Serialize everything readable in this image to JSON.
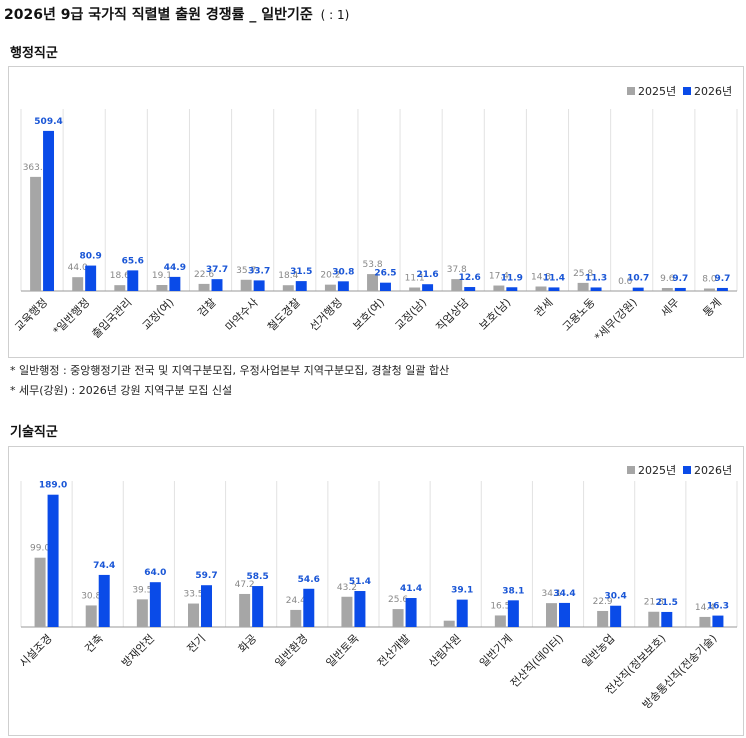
{
  "page": {
    "title": "2026년 9급 국가직 직렬별 출원 경쟁률 _ 일반기준",
    "unit": "( : 1)"
  },
  "colors": {
    "prev": "#a6a6a6",
    "curr": "#0a4be8",
    "grid": "#e2e2e2",
    "axis": "#999999"
  },
  "notes": [
    "* 일반행정 : 중앙행정기관 전국 및 지역구분모집, 우정사업본부 지역구분모집, 경찰청 일괄 합산",
    "* 세무(강원) : 2026년 강원 지역구분 모집 신설"
  ],
  "chart_data": [
    {
      "type": "bar",
      "title": "행정직군",
      "legend_position": "top-right",
      "grid": "vertical",
      "categories": [
        "교육행정",
        "*일반행정",
        "출입국관리",
        "교정(여)",
        "검찰",
        "마약수사",
        "철도경찰",
        "선거행정",
        "보호(여)",
        "교정(남)",
        "직업상담",
        "보호(남)",
        "관세",
        "고용노동",
        "*세무(강원)",
        "세무",
        "통계"
      ],
      "series": [
        {
          "name": "2025년",
          "values": [
            363.1,
            44.0,
            18.6,
            19.1,
            22.6,
            35.7,
            18.4,
            20.2,
            53.8,
            11.1,
            37.8,
            17.4,
            14.3,
            25.8,
            0.0,
            9.6,
            8.0
          ]
        },
        {
          "name": "2026년",
          "values": [
            509.4,
            80.9,
            65.6,
            44.9,
            37.7,
            33.7,
            31.5,
            30.8,
            26.5,
            21.6,
            12.6,
            11.9,
            11.4,
            11.3,
            10.7,
            9.7,
            9.7
          ]
        }
      ],
      "ylim": [
        0,
        560
      ]
    },
    {
      "type": "bar",
      "title": "기술직군",
      "legend_position": "top-right",
      "grid": "vertical",
      "categories": [
        "시설조경",
        "건축",
        "방재안전",
        "전기",
        "화공",
        "일반환경",
        "일반토목",
        "전산개발",
        "산림자원",
        "일반기계",
        "전산직(데이터)",
        "일반농업",
        "전산직(정보보호)",
        "방송통신직(전송기술)"
      ],
      "series": [
        {
          "name": "2025년",
          "values": [
            99.0,
            30.8,
            39.5,
            33.5,
            47.2,
            24.4,
            43.2,
            25.6,
            9.0,
            16.5,
            34.1,
            22.9,
            21.8,
            14.4
          ],
          "labels": [
            "99.0",
            "30.8",
            "39.5",
            "33.5",
            "47.2",
            "24.4",
            "43.2",
            "25.6",
            "",
            "16.5",
            "34.1",
            "22.9",
            "21.8",
            "14.4"
          ]
        },
        {
          "name": "2026년",
          "values": [
            189.0,
            74.4,
            64.0,
            59.7,
            58.5,
            54.6,
            51.4,
            41.4,
            39.1,
            38.1,
            34.4,
            30.4,
            21.5,
            16.3
          ]
        }
      ],
      "ylim": [
        0,
        200
      ]
    }
  ]
}
